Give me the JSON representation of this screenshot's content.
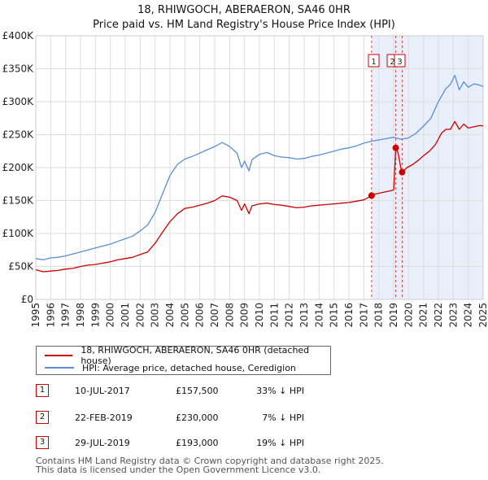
{
  "chart_data": {
    "type": "line",
    "title": "18, RHIWGOCH, ABERAERON, SA46 0HR",
    "subtitle": "Price paid vs. HM Land Registry's House Price Index (HPI)",
    "xlabel": "",
    "ylabel": "",
    "xlim": [
      1995,
      2025
    ],
    "ylim": [
      0,
      400000
    ],
    "y_ticks": [
      0,
      50000,
      100000,
      150000,
      200000,
      250000,
      300000,
      350000,
      400000
    ],
    "y_tick_labels": [
      "£0",
      "£50K",
      "£100K",
      "£150K",
      "£200K",
      "£250K",
      "£300K",
      "£350K",
      "£400K"
    ],
    "x_ticks": [
      1995,
      1996,
      1997,
      1998,
      1999,
      2000,
      2001,
      2002,
      2003,
      2004,
      2005,
      2006,
      2007,
      2008,
      2009,
      2010,
      2011,
      2012,
      2013,
      2014,
      2015,
      2016,
      2017,
      2018,
      2019,
      2020,
      2021,
      2022,
      2023,
      2024,
      2025
    ],
    "x_tick_labels": [
      "1995",
      "1996",
      "1997",
      "1998",
      "1999",
      "2000",
      "2001",
      "2002",
      "2003",
      "2004",
      "2005",
      "2006",
      "2007",
      "2008",
      "2009",
      "2010",
      "2011",
      "2012",
      "2013",
      "2014",
      "2015",
      "2016",
      "2017",
      "2018",
      "2019",
      "2020",
      "2021",
      "2022",
      "2023",
      "2024",
      "2025"
    ],
    "grid": true,
    "legend_position": "below chart",
    "shaded_region": [
      2017.52,
      2025
    ],
    "series": [
      {
        "name": "18, RHIWGOCH, ABERAERON, SA46 0HR (detached house)",
        "color": "#cc0000",
        "x": [
          1995.0,
          1995.5,
          1996.0,
          1996.5,
          1997.0,
          1997.5,
          1998.0,
          1998.5,
          1999.0,
          1999.5,
          2000.0,
          2000.5,
          2001.0,
          2001.5,
          2002.0,
          2002.5,
          2003.0,
          2003.5,
          2004.0,
          2004.5,
          2005.0,
          2005.5,
          2006.0,
          2006.5,
          2007.0,
          2007.5,
          2008.0,
          2008.5,
          2008.8,
          2009.0,
          2009.3,
          2009.5,
          2010.0,
          2010.5,
          2011.0,
          2011.5,
          2012.0,
          2012.5,
          2013.0,
          2013.5,
          2014.0,
          2014.5,
          2015.0,
          2015.5,
          2016.0,
          2016.5,
          2017.0,
          2017.52,
          2017.8,
          2018.2,
          2018.6,
          2019.0,
          2019.14,
          2019.3,
          2019.5,
          2019.57,
          2019.9,
          2020.3,
          2020.7,
          2021.0,
          2021.4,
          2021.8,
          2022.2,
          2022.5,
          2022.8,
          2023.1,
          2023.4,
          2023.7,
          2024.0,
          2024.4,
          2024.8,
          2025.0
        ],
        "values": [
          45000,
          42000,
          43000,
          44000,
          46000,
          47000,
          50000,
          52000,
          53000,
          55000,
          57000,
          60000,
          62000,
          64000,
          68000,
          72000,
          85000,
          102000,
          118000,
          130000,
          138000,
          140000,
          143000,
          146000,
          150000,
          157000,
          155000,
          150000,
          135000,
          145000,
          130000,
          142000,
          145000,
          146000,
          144000,
          143000,
          141000,
          139000,
          140000,
          142000,
          143000,
          144000,
          145000,
          146000,
          147000,
          149000,
          151000,
          157500,
          160000,
          162000,
          164000,
          166000,
          230000,
          222000,
          197000,
          193000,
          200000,
          205000,
          212000,
          218000,
          225000,
          235000,
          252000,
          258000,
          258000,
          270000,
          258000,
          266000,
          260000,
          262000,
          264000,
          263000
        ]
      },
      {
        "name": "HPI: Average price, detached house, Ceredigion",
        "color": "#5b8ed6",
        "x": [
          1995.0,
          1995.5,
          1996.0,
          1996.5,
          1997.0,
          1997.5,
          1998.0,
          1998.5,
          1999.0,
          1999.5,
          2000.0,
          2000.5,
          2001.0,
          2001.5,
          2002.0,
          2002.5,
          2003.0,
          2003.5,
          2004.0,
          2004.5,
          2005.0,
          2005.5,
          2006.0,
          2006.5,
          2007.0,
          2007.5,
          2008.0,
          2008.5,
          2008.8,
          2009.0,
          2009.3,
          2009.5,
          2010.0,
          2010.5,
          2011.0,
          2011.5,
          2012.0,
          2012.5,
          2013.0,
          2013.5,
          2014.0,
          2014.5,
          2015.0,
          2015.5,
          2016.0,
          2016.5,
          2017.0,
          2017.5,
          2018.0,
          2018.5,
          2019.0,
          2019.5,
          2020.0,
          2020.5,
          2021.0,
          2021.5,
          2022.0,
          2022.5,
          2022.8,
          2023.1,
          2023.4,
          2023.7,
          2024.0,
          2024.4,
          2024.8,
          2025.0
        ],
        "values": [
          62000,
          60000,
          63000,
          64000,
          66000,
          69000,
          72000,
          75000,
          78000,
          81000,
          84000,
          88000,
          92000,
          96000,
          104000,
          113000,
          132000,
          160000,
          188000,
          205000,
          213000,
          217000,
          222000,
          227000,
          232000,
          238000,
          232000,
          222000,
          200000,
          210000,
          195000,
          212000,
          220000,
          223000,
          218000,
          216000,
          215000,
          213000,
          214000,
          217000,
          219000,
          222000,
          225000,
          228000,
          230000,
          233000,
          237000,
          240000,
          242000,
          244000,
          246000,
          243000,
          245000,
          252000,
          263000,
          275000,
          300000,
          320000,
          326000,
          340000,
          318000,
          330000,
          322000,
          327000,
          325000,
          323000
        ]
      }
    ],
    "sale_markers": [
      {
        "label": "1",
        "x": 2017.52,
        "value": 157500
      },
      {
        "label": "2",
        "x": 2019.14,
        "value": 230000
      },
      {
        "label": "3",
        "x": 2019.57,
        "value": 193000
      }
    ]
  },
  "legend": {
    "items": [
      {
        "label": "18, RHIWGOCH, ABERAERON, SA46 0HR (detached house)",
        "color": "#cc0000"
      },
      {
        "label": "HPI: Average price, detached house, Ceredigion",
        "color": "#5b8ed6"
      }
    ]
  },
  "sales": [
    {
      "num": "1",
      "date": "10-JUL-2017",
      "price": "£157,500",
      "hpi": "33% ↓ HPI"
    },
    {
      "num": "2",
      "date": "22-FEB-2019",
      "price": "£230,000",
      "hpi": "7% ↓ HPI"
    },
    {
      "num": "3",
      "date": "29-JUL-2019",
      "price": "£193,000",
      "hpi": "19% ↓ HPI"
    }
  ],
  "footer": {
    "line1": "Contains HM Land Registry data © Crown copyright and database right 2025.",
    "line2": "This data is licensed under the Open Government Licence v3.0."
  }
}
